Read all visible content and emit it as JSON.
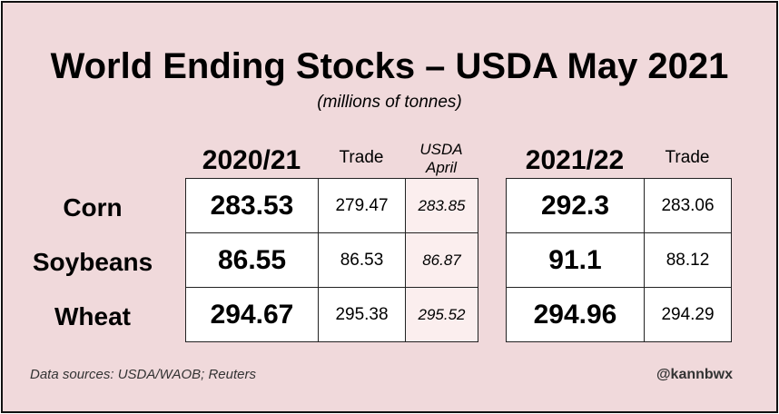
{
  "chart_data": {
    "type": "table",
    "title": "World Ending Stocks – USDA May 2021",
    "subtitle": "(millions of tonnes)",
    "groups": [
      {
        "label": "2020/21",
        "columns": [
          "",
          "Trade",
          "USDA April"
        ],
        "column_lines": [
          [
            "2020/21"
          ],
          [
            "Trade"
          ],
          [
            "USDA",
            "April"
          ]
        ]
      },
      {
        "label": "2021/22",
        "columns": [
          "",
          "Trade"
        ],
        "column_lines": [
          [
            "2021/22"
          ],
          [
            "Trade"
          ]
        ]
      }
    ],
    "rows": [
      {
        "label": "Corn",
        "values_2020_21": [
          "283.53",
          "279.47",
          "283.85"
        ],
        "values_2021_22": [
          "292.3",
          "283.06"
        ]
      },
      {
        "label": "Soybeans",
        "values_2020_21": [
          "86.55",
          "86.53",
          "86.87"
        ],
        "values_2021_22": [
          "91.1",
          "88.12"
        ]
      },
      {
        "label": "Wheat",
        "values_2020_21": [
          "294.67",
          "295.38",
          "295.52"
        ],
        "values_2021_22": [
          "294.96",
          "294.29"
        ]
      }
    ]
  },
  "footer": {
    "source": "Data sources: USDA/WAOB; Reuters",
    "handle": "@kannbwx"
  },
  "colors": {
    "background": "#f0d9db",
    "cell": "#ffffff",
    "usda_april_cell": "#fbeeee",
    "border": "#222222"
  }
}
